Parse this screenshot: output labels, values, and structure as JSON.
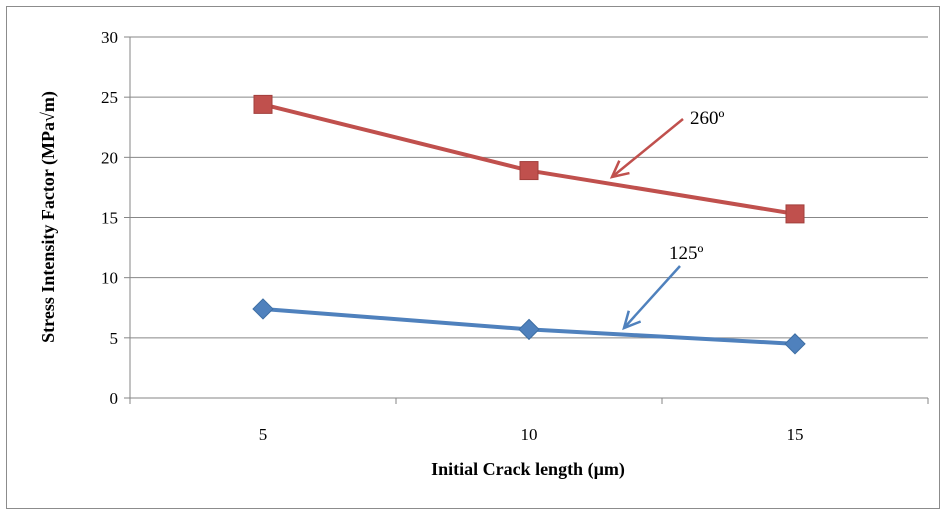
{
  "chart_data": {
    "type": "line",
    "x": [
      5,
      10,
      15
    ],
    "series": [
      {
        "values": [
          24.4,
          18.9,
          15.3
        ],
        "color": "#c0504d",
        "marker": "square",
        "annotation": "260º"
      },
      {
        "values": [
          7.4,
          5.7,
          4.5
        ],
        "color": "#4f81bd",
        "marker": "diamond",
        "annotation": "125º"
      }
    ],
    "xlabel": "Initial  Crack length (µm)",
    "ylabel": "Stress Intensity  Factor (MPa√m)",
    "ylim": [
      0,
      30
    ],
    "yticks": [
      0,
      5,
      10,
      15,
      20,
      25,
      30
    ],
    "xtick_labels": [
      "5",
      "10",
      "15"
    ],
    "grid": true,
    "legend": "none"
  }
}
